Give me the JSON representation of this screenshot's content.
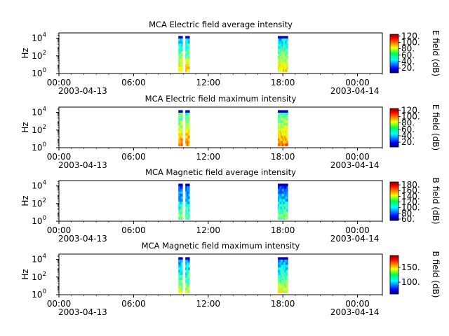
{
  "figure": {
    "background": "#ffffff"
  },
  "chart_data": [
    {
      "type": "heatmap",
      "title": "MCA  Electric field average intensity",
      "ylabel": "Hz",
      "yscale": "log",
      "yticks": [
        {
          "base": "10",
          "exp": "0"
        },
        {
          "base": "10",
          "exp": "2"
        },
        {
          "base": "10",
          "exp": "4"
        }
      ],
      "xlim_hours": [
        0,
        26
      ],
      "xticks": [
        "00:00",
        "06:00",
        "12:00",
        "18:00",
        "00:00"
      ],
      "xdates": [
        "2003-04-13",
        "2003-04-14"
      ],
      "colorbar": {
        "label": "E field (dB)",
        "range": [
          5,
          125
        ],
        "ticks": [
          "20.",
          "40.",
          "60.",
          "80.",
          "100.",
          "120."
        ]
      },
      "segments": [
        {
          "start_hour": 9.6,
          "end_hour": 10.5,
          "intensity": "mid-low"
        },
        {
          "start_hour": 17.6,
          "end_hour": 18.4,
          "intensity": "mid-low"
        }
      ]
    },
    {
      "type": "heatmap",
      "title": "MCA  Electric field maximum intensity",
      "ylabel": "Hz",
      "yscale": "log",
      "yticks": [
        {
          "base": "10",
          "exp": "0"
        },
        {
          "base": "10",
          "exp": "2"
        },
        {
          "base": "10",
          "exp": "4"
        }
      ],
      "xlim_hours": [
        0,
        26
      ],
      "xticks": [
        "00:00",
        "06:00",
        "12:00",
        "18:00",
        "00:00"
      ],
      "xdates": [
        "2003-04-13",
        "2003-04-14"
      ],
      "colorbar": {
        "label": "E field (dB)",
        "range": [
          5,
          125
        ],
        "ticks": [
          "20.",
          "40.",
          "60.",
          "80.",
          "100.",
          "120."
        ]
      },
      "segments": [
        {
          "start_hour": 9.6,
          "end_hour": 10.5,
          "intensity": "mid"
        },
        {
          "start_hour": 17.6,
          "end_hour": 18.4,
          "intensity": "mid"
        }
      ]
    },
    {
      "type": "heatmap",
      "title": "MCA  Magnetic field average intensity",
      "ylabel": "Hz",
      "yscale": "log",
      "yticks": [
        {
          "base": "10",
          "exp": "0"
        },
        {
          "base": "10",
          "exp": "2"
        },
        {
          "base": "10",
          "exp": "4"
        }
      ],
      "xlim_hours": [
        0,
        26
      ],
      "xticks": [
        "00:00",
        "06:00",
        "12:00",
        "18:00",
        "00:00"
      ],
      "xdates": [
        "2003-04-13",
        "2003-04-14"
      ],
      "colorbar": {
        "label": "B field (dB)",
        "range": [
          55,
          190
        ],
        "ticks": [
          "60.",
          "80.",
          "100.",
          "120.",
          "140.",
          "160.",
          "180."
        ]
      },
      "segments": [
        {
          "start_hour": 9.6,
          "end_hour": 10.5,
          "intensity": "low"
        },
        {
          "start_hour": 17.6,
          "end_hour": 18.4,
          "intensity": "low"
        }
      ]
    },
    {
      "type": "heatmap",
      "title": "MCA  Magnetic field maximum intensity",
      "ylabel": "Hz",
      "yscale": "log",
      "yticks": [
        {
          "base": "10",
          "exp": "0"
        },
        {
          "base": "10",
          "exp": "2"
        },
        {
          "base": "10",
          "exp": "4"
        }
      ],
      "xlim_hours": [
        0,
        26
      ],
      "xticks": [
        "00:00",
        "06:00",
        "12:00",
        "18:00",
        "00:00"
      ],
      "xdates": [
        "2003-04-13",
        "2003-04-14"
      ],
      "colorbar": {
        "label": "B field (dB)",
        "range": [
          60,
          190
        ],
        "ticks": [
          "100.",
          "150."
        ]
      },
      "segments": [
        {
          "start_hour": 9.6,
          "end_hour": 10.5,
          "intensity": "low-mid"
        },
        {
          "start_hour": 17.6,
          "end_hour": 18.4,
          "intensity": "low-mid"
        }
      ]
    }
  ]
}
